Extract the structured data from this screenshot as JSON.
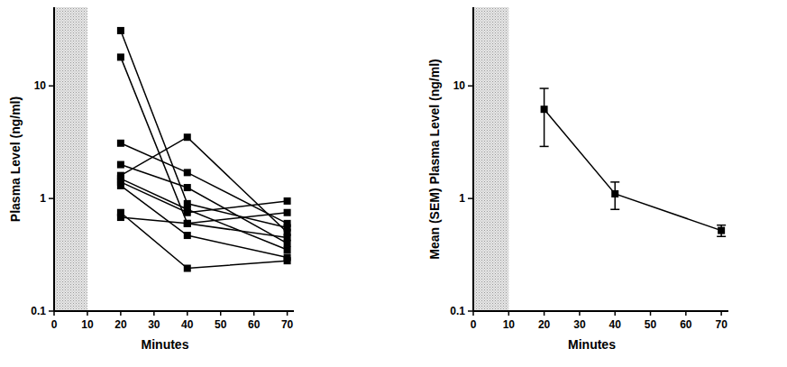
{
  "chart_data": [
    {
      "type": "line",
      "x_label": "Minutes",
      "y_label": "Plasma Level (ng/ml)",
      "x": [
        20,
        40,
        70
      ],
      "series": [
        {
          "values": [
            31,
            0.9,
            0.55
          ]
        },
        {
          "values": [
            18,
            0.6,
            0.45
          ]
        },
        {
          "values": [
            3.1,
            1.7,
            0.6
          ]
        },
        {
          "values": [
            2.0,
            1.25,
            0.4
          ]
        },
        {
          "values": [
            1.6,
            3.5,
            0.5
          ]
        },
        {
          "values": [
            1.5,
            0.8,
            0.35
          ]
        },
        {
          "values": [
            1.4,
            0.75,
            0.95
          ]
        },
        {
          "values": [
            1.3,
            0.47,
            0.3
          ]
        },
        {
          "values": [
            0.75,
            0.24,
            0.28
          ]
        },
        {
          "values": [
            0.68,
            0.6,
            0.75
          ]
        }
      ],
      "color": "#000000",
      "marker": "square",
      "log": "y",
      "xlim": [
        0,
        72
      ],
      "ylim": [
        0.1,
        50
      ],
      "xticks": [
        0,
        10,
        20,
        30,
        40,
        50,
        60,
        70
      ],
      "yticks": [
        0.1,
        1,
        10
      ],
      "shaded_x": [
        0,
        10
      ]
    },
    {
      "type": "line",
      "x_label": "Minutes",
      "y_label": "Mean (SEM) Plasma Level (ng/ml)",
      "x": [
        20,
        40,
        70
      ],
      "series": [
        {
          "values": [
            6.2,
            1.1,
            0.52
          ],
          "errors": [
            3.3,
            0.3,
            0.06
          ]
        }
      ],
      "color": "#000000",
      "marker": "square",
      "log": "y",
      "xlim": [
        0,
        72
      ],
      "ylim": [
        0.1,
        50
      ],
      "xticks": [
        0,
        10,
        20,
        30,
        40,
        50,
        60,
        70
      ],
      "yticks": [
        0.1,
        1,
        10
      ],
      "shaded_x": [
        0,
        10
      ]
    }
  ]
}
